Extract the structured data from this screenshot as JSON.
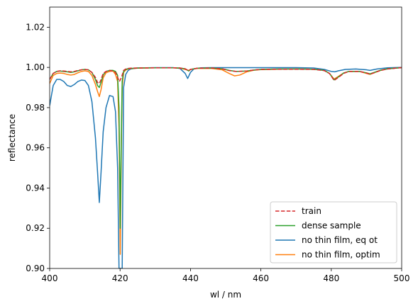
{
  "chart_data": {
    "type": "line",
    "title": "",
    "xlabel": "wl / nm",
    "ylabel": "reflectance",
    "xlim": [
      400,
      500
    ],
    "ylim": [
      0.9,
      1.03
    ],
    "xticks": [
      400,
      420,
      440,
      460,
      480,
      500
    ],
    "xtick_labels": [
      "400",
      "420",
      "440",
      "460",
      "480",
      "500"
    ],
    "yticks": [
      0.9,
      0.92,
      0.94,
      0.96,
      0.98,
      1.0,
      1.02
    ],
    "ytick_labels": [
      "0.90",
      "0.92",
      "0.94",
      "0.96",
      "0.98",
      "1.00",
      "1.02"
    ],
    "grid": false,
    "legend_position": "lower-right",
    "series": [
      {
        "name": "no thin film, eq ot",
        "color": "#1f77b4",
        "dash": "solid",
        "x": [
          400,
          401,
          402,
          403,
          404,
          405,
          406,
          407,
          408,
          409,
          410,
          411,
          412,
          413,
          413.6,
          414.1,
          414.6,
          415.2,
          416,
          417,
          418,
          418.7,
          419.3,
          419.7,
          419.9,
          420.3,
          420.6,
          421,
          421.6,
          422.3,
          423,
          425,
          430,
          435,
          437,
          438.5,
          439.2,
          440,
          441,
          443,
          446,
          450,
          460,
          470,
          475,
          478,
          480,
          481,
          482,
          484,
          487,
          490,
          491,
          493,
          496,
          500
        ],
        "y": [
          0.981,
          0.991,
          0.994,
          0.994,
          0.993,
          0.991,
          0.9905,
          0.9915,
          0.993,
          0.9937,
          0.9935,
          0.991,
          0.983,
          0.965,
          0.948,
          0.9328,
          0.948,
          0.968,
          0.98,
          0.986,
          0.9855,
          0.978,
          0.95,
          0.9,
          0.9,
          0.9,
          0.9,
          0.99,
          0.9965,
          0.9985,
          0.9992,
          0.9997,
          0.9999,
          0.9999,
          0.9995,
          0.997,
          0.9945,
          0.9975,
          0.9993,
          0.9998,
          0.9999,
          0.9999,
          0.9999,
          0.9999,
          0.9997,
          0.999,
          0.998,
          0.9978,
          0.9983,
          0.999,
          0.9992,
          0.9988,
          0.9985,
          0.9992,
          0.9998,
          1.0
        ]
      },
      {
        "name": "no thin film, optim",
        "color": "#ff7f0e",
        "dash": "solid",
        "x": [
          400,
          401,
          402,
          403,
          404,
          405,
          406,
          407,
          408,
          409,
          410,
          411,
          412,
          413,
          413.6,
          414.1,
          414.6,
          415.2,
          416,
          417,
          418,
          418.7,
          419.3,
          419.7,
          420.05,
          420.35,
          420.6,
          421,
          421.6,
          422.3,
          423,
          425,
          430,
          435,
          437,
          438.5,
          439.5,
          440,
          442,
          446,
          449,
          451,
          452.5,
          454,
          456,
          458,
          460,
          465,
          470,
          475,
          478,
          479.5,
          480.8,
          482,
          483.5,
          485,
          488,
          490,
          491,
          492,
          494,
          496,
          500
        ],
        "y": [
          0.992,
          0.996,
          0.997,
          0.9972,
          0.997,
          0.9965,
          0.9962,
          0.9965,
          0.9973,
          0.998,
          0.9983,
          0.998,
          0.996,
          0.9915,
          0.988,
          0.9855,
          0.989,
          0.9948,
          0.9973,
          0.998,
          0.9982,
          0.9965,
          0.993,
          0.97,
          0.907,
          0.96,
          0.99,
          0.9975,
          0.9987,
          0.9992,
          0.9994,
          0.9996,
          0.9998,
          0.9998,
          0.9996,
          0.999,
          0.9985,
          0.999,
          0.9995,
          0.9995,
          0.9988,
          0.997,
          0.9958,
          0.9962,
          0.9978,
          0.9986,
          0.9989,
          0.9991,
          0.9992,
          0.9991,
          0.9985,
          0.997,
          0.9942,
          0.9955,
          0.9972,
          0.998,
          0.998,
          0.997,
          0.9965,
          0.9972,
          0.9985,
          0.9993,
          0.9999
        ]
      },
      {
        "name": "dense sample",
        "color": "#2ca02c",
        "dash": "solid",
        "x": [
          400,
          401,
          402,
          403,
          404,
          405,
          406,
          407,
          408,
          409,
          410,
          411,
          412,
          413,
          413.6,
          414.1,
          414.6,
          415.2,
          416,
          417,
          418,
          418.7,
          419.3,
          419.7,
          420.05,
          420.35,
          420.6,
          421,
          421.6,
          422.3,
          423,
          425,
          430,
          435,
          437,
          438.5,
          439.5,
          440,
          442,
          446,
          449,
          451,
          453,
          456,
          458,
          460,
          465,
          470,
          475,
          478,
          479.5,
          480.8,
          482,
          483.5,
          485,
          488,
          490,
          491,
          492,
          494,
          496,
          500
        ],
        "y": [
          0.994,
          0.997,
          0.998,
          0.9982,
          0.998,
          0.9978,
          0.9975,
          0.9978,
          0.9983,
          0.9988,
          0.999,
          0.9988,
          0.9975,
          0.994,
          0.991,
          0.99,
          0.9925,
          0.9963,
          0.998,
          0.9985,
          0.9985,
          0.998,
          0.996,
          0.98,
          0.92,
          0.965,
          0.993,
          0.998,
          0.999,
          0.9994,
          0.9995,
          0.9997,
          0.9998,
          0.9998,
          0.9997,
          0.9993,
          0.9982,
          0.999,
          0.9996,
          0.9997,
          0.9993,
          0.9985,
          0.998,
          0.9982,
          0.9987,
          0.999,
          0.9992,
          0.9992,
          0.9991,
          0.9985,
          0.997,
          0.9938,
          0.9952,
          0.9972,
          0.998,
          0.998,
          0.9973,
          0.9968,
          0.9974,
          0.9986,
          0.9993,
          0.9999
        ]
      },
      {
        "name": "train",
        "color": "#d62728",
        "dash": "dashed",
        "x": [
          400,
          401,
          402,
          403,
          404,
          405,
          406,
          407,
          408,
          409,
          410,
          411,
          412,
          413,
          413.6,
          414.1,
          414.6,
          415.2,
          416,
          417,
          418,
          418.7,
          419.3,
          419.8,
          420.4,
          421,
          421.6,
          422.3,
          423,
          425,
          430,
          435,
          437,
          438.5,
          439.5,
          440,
          442,
          446,
          449,
          451,
          453,
          456,
          458,
          460,
          465,
          470,
          475,
          478,
          479.5,
          480.8,
          482,
          483.5,
          485,
          488,
          490,
          491,
          492,
          494,
          496,
          500
        ],
        "y": [
          0.994,
          0.997,
          0.998,
          0.9983,
          0.9982,
          0.998,
          0.9978,
          0.998,
          0.9985,
          0.9988,
          0.999,
          0.9988,
          0.9975,
          0.995,
          0.9925,
          0.992,
          0.994,
          0.997,
          0.998,
          0.9985,
          0.9982,
          0.9975,
          0.995,
          0.993,
          0.995,
          0.9985,
          0.9992,
          0.9995,
          0.9996,
          0.9997,
          0.9998,
          0.9998,
          0.9997,
          0.9993,
          0.9983,
          0.999,
          0.9996,
          0.9997,
          0.9993,
          0.9984,
          0.998,
          0.9982,
          0.9987,
          0.999,
          0.9991,
          0.9991,
          0.999,
          0.9984,
          0.997,
          0.9935,
          0.995,
          0.997,
          0.998,
          0.998,
          0.9972,
          0.9966,
          0.9972,
          0.9985,
          0.9992,
          0.9999
        ]
      }
    ],
    "legend": [
      {
        "label": "train",
        "color": "#d62728",
        "dash": "dashed"
      },
      {
        "label": "dense sample",
        "color": "#2ca02c",
        "dash": "solid"
      },
      {
        "label": "no thin film, eq ot",
        "color": "#1f77b4",
        "dash": "solid"
      },
      {
        "label": "no thin film, optim",
        "color": "#ff7f0e",
        "dash": "solid"
      }
    ]
  }
}
